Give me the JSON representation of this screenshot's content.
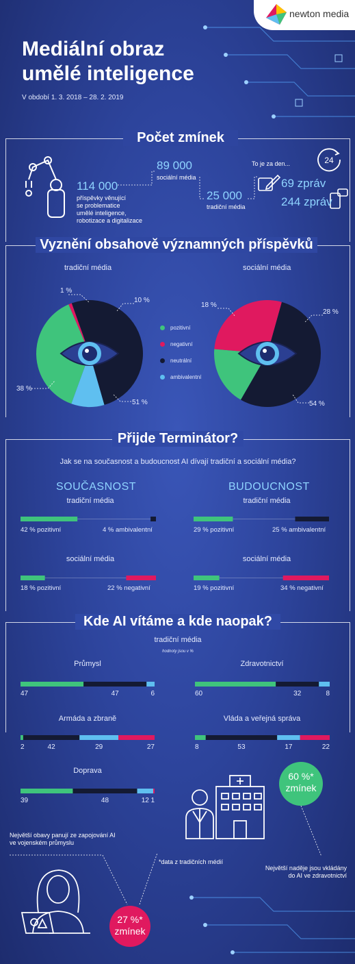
{
  "logo": {
    "text": "newton media"
  },
  "header": {
    "title_line1": "Mediální obraz",
    "title_line2": "umělé inteligence",
    "period": "V období 1. 3. 2018 – 28. 2. 2019"
  },
  "mentions": {
    "title": "Počet zmínek",
    "total_value": "114 000",
    "total_desc_1": "příspěvky věnující",
    "total_desc_2": "se problematice",
    "total_desc_3": "umělé inteligence,",
    "total_desc_4": "robotizace a digitalizace",
    "social_value": "89 000",
    "social_label": "sociální média",
    "traditional_value": "25 000",
    "traditional_label": "tradiční média",
    "per_day_label": "To je za den...",
    "per_day_traditional": "69 zpráv",
    "per_day_social": "244 zpráv",
    "clock_label": "24"
  },
  "sentiment": {
    "title": "Vyznění obsahově významných příspěvků",
    "legend": [
      "pozitivní",
      "negativní",
      "neutrální",
      "ambivalentní"
    ],
    "traditional_title": "tradiční média",
    "social_title": "sociální média"
  },
  "terminator": {
    "title": "Přijde Terminátor?",
    "question": "Jak se na současnost a budoucnost AI dívají tradiční a sociální média?",
    "present": "SOUČASNOST",
    "future": "BUDOUCNOST",
    "trad": "tradiční média",
    "soc": "sociální média",
    "p_trad_left": "42 % pozitivní",
    "p_trad_right": "4 % ambivalentní",
    "p_soc_left": "18 % pozitivní",
    "p_soc_right": "22 % negativní",
    "f_trad_left": "29 % pozitivní",
    "f_trad_right": "25 % ambivalentní",
    "f_soc_left": "19 % pozitivní",
    "f_soc_right": "34 % negativní"
  },
  "welcome": {
    "title": "Kde AI vítáme a kde naopak?",
    "subtitle": "tradiční média",
    "note": "hodnoty jsou v %",
    "footnote": "*data z tradičních médií",
    "fear_text_1": "Největší obavy panují ze zapojování AI",
    "fear_text_2": "ve vojenském průmyslu",
    "fear_value_1": "27 %*",
    "fear_value_2": "zmínek",
    "hope_text_1": "Největší naděje jsou vkládány",
    "hope_text_2": "do AI ve zdravotnictví",
    "hope_value_1": "60 %*",
    "hope_value_2": "zmínek"
  },
  "colors": {
    "positive": "#3fc47c",
    "negative": "#e0195f",
    "neutral": "#141a33",
    "ambivalent": "#5fbff0"
  },
  "chart_data": [
    {
      "type": "pie",
      "title": "tradiční média",
      "labels": [
        "pozitivní",
        "negativní",
        "neutrální",
        "ambivalentní"
      ],
      "values": [
        38,
        1,
        51,
        10
      ],
      "value_labels": [
        "38 %",
        "1 %",
        "51 %",
        "10 %"
      ]
    },
    {
      "type": "pie",
      "title": "sociální média",
      "labels": [
        "pozitivní",
        "negativní",
        "neutrální",
        "ambivalentní"
      ],
      "values": [
        18,
        28,
        54,
        0
      ],
      "value_labels": [
        "18 %",
        "28 %",
        "54 %",
        ""
      ]
    },
    {
      "type": "bar",
      "title": "Přijde Terminátor?",
      "bars": [
        {
          "period": "SOUČASNOST",
          "media": "tradiční média",
          "left": 42,
          "right": 4,
          "right_sentiment": "ambivalentní"
        },
        {
          "period": "SOUČASNOST",
          "media": "sociální média",
          "left": 18,
          "right": 22,
          "right_sentiment": "negativní"
        },
        {
          "period": "BUDOUCNOST",
          "media": "tradiční média",
          "left": 29,
          "right": 25,
          "right_sentiment": "ambivalentní"
        },
        {
          "period": "BUDOUCNOST",
          "media": "sociální média",
          "left": 19,
          "right": 34,
          "right_sentiment": "negativní"
        }
      ]
    },
    {
      "type": "bar",
      "title": "Kde AI vítáme a kde naopak?",
      "stacked": true,
      "series_order": [
        "pozitivní",
        "negativní",
        "neutrální",
        "ambivalentní"
      ],
      "categories": [
        {
          "name": "Průmysl",
          "values": [
            47,
            0,
            47,
            6
          ],
          "labels": [
            "47",
            "",
            "47",
            "6"
          ]
        },
        {
          "name": "Zdravotnictví",
          "values": [
            60,
            0,
            32,
            8
          ],
          "labels": [
            "60",
            "",
            "32",
            "8"
          ]
        },
        {
          "name": "Armáda a zbraně",
          "values": [
            2,
            27,
            42,
            29
          ],
          "labels": [
            "2",
            "27",
            "42",
            "29"
          ]
        },
        {
          "name": "Vláda a veřejná správa",
          "values": [
            8,
            22,
            53,
            17
          ],
          "labels": [
            "8",
            "22",
            "53",
            "17"
          ]
        },
        {
          "name": "Doprava",
          "values": [
            39,
            1,
            48,
            12
          ],
          "labels": [
            "39",
            "1",
            "48",
            "12"
          ]
        }
      ]
    }
  ]
}
